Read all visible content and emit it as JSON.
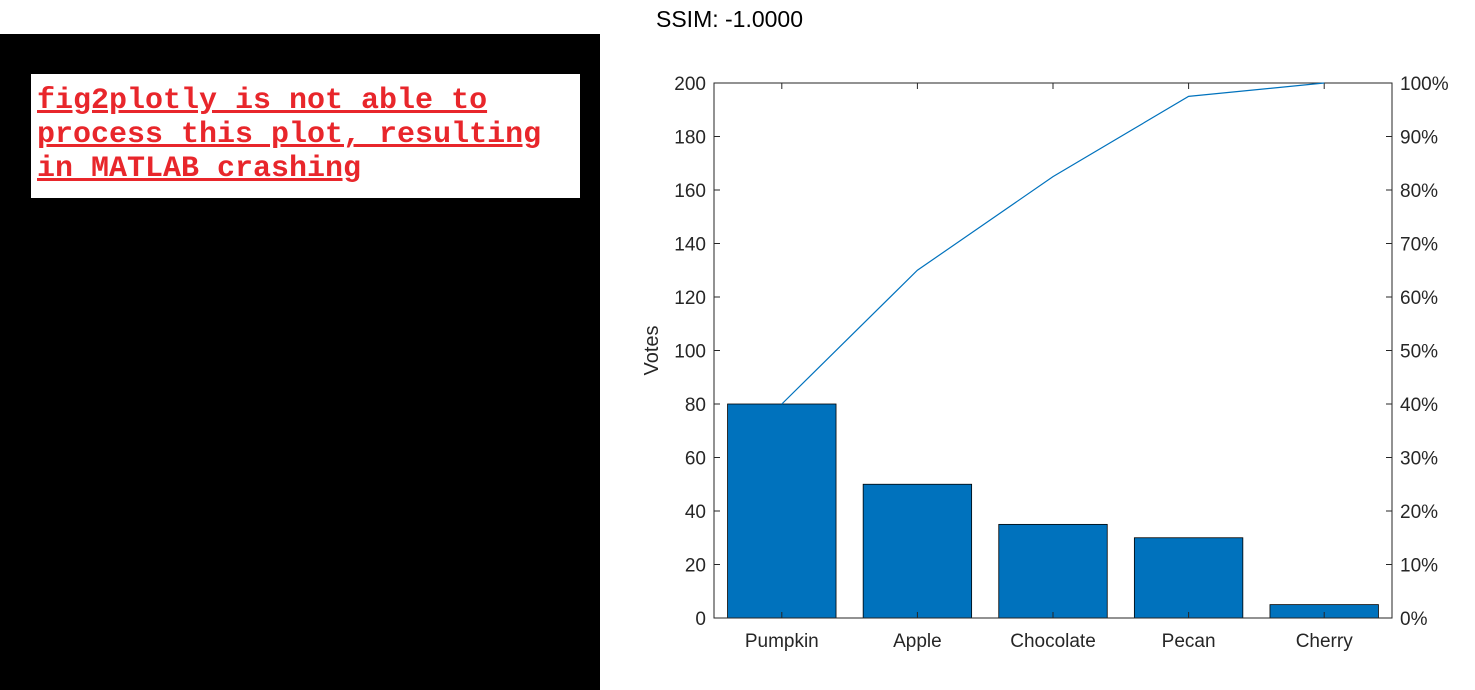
{
  "error_panel": {
    "lines": [
      "fig2plotly is not able to",
      "process this plot, resulting",
      "in MATLAB crashing"
    ]
  },
  "ssim_title": "SSIM: -1.0000",
  "chart_data": {
    "type": "bar",
    "categories": [
      "Pumpkin",
      "Apple",
      "Chocolate",
      "Pecan",
      "Cherry"
    ],
    "values": [
      80,
      50,
      35,
      30,
      5
    ],
    "cumulative_percent": [
      40,
      65,
      82.5,
      97.5,
      100
    ],
    "ylabel": "Votes",
    "ylim": [
      0,
      200
    ],
    "yticks": [
      0,
      20,
      40,
      60,
      80,
      100,
      120,
      140,
      160,
      180,
      200
    ],
    "y2lim": [
      0,
      100
    ],
    "y2ticks": [
      "0%",
      "10%",
      "20%",
      "30%",
      "40%",
      "50%",
      "60%",
      "70%",
      "80%",
      "90%",
      "100%"
    ],
    "bar_color": "#0072bd",
    "line_color": "#0072bd",
    "grid": false
  }
}
